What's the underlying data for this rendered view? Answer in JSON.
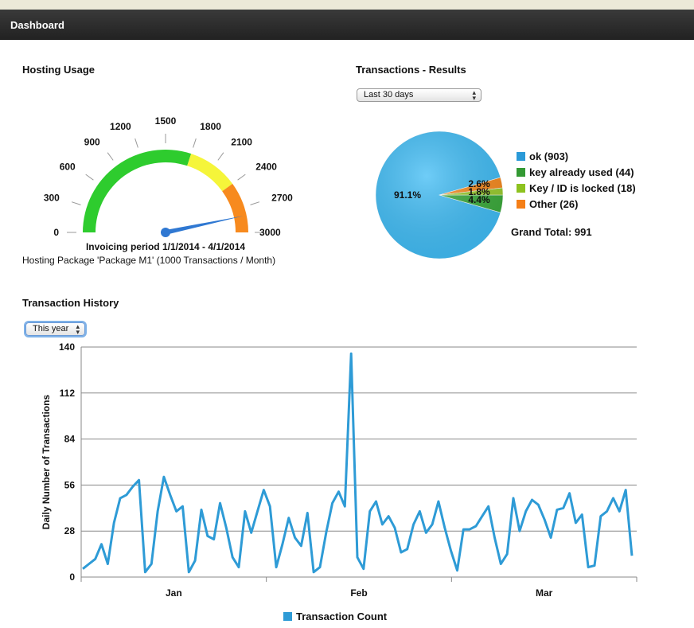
{
  "header": {
    "title": "Dashboard"
  },
  "hosting": {
    "title": "Hosting Usage",
    "gauge": {
      "min": 0,
      "max": 3000,
      "value": 2800,
      "ticks": [
        "0",
        "300",
        "600",
        "900",
        "1200",
        "1500",
        "1800",
        "2100",
        "2400",
        "2700",
        "3000"
      ],
      "bands": [
        {
          "from": 0,
          "to": 1800,
          "color": "#2ecc2e"
        },
        {
          "from": 1800,
          "to": 2400,
          "color": "#f5f53a"
        },
        {
          "from": 2400,
          "to": 3000,
          "color": "#f78a1e"
        }
      ],
      "needle_color": "#2f78d2",
      "caption": "Invoicing period 1/1/2014 - 4/1/2014"
    },
    "package_text": "Hosting Package 'Package M1' (1000 Transactions / Month)"
  },
  "results": {
    "title": "Transactions - Results",
    "period_select": {
      "value": "Last 30 days"
    },
    "grand_total": "Grand Total: 991",
    "chart_data": {
      "type": "pie",
      "slices": [
        {
          "label": "ok (903)",
          "value": 903,
          "pct_label": "91.1%",
          "color": "#3fbcf5",
          "legend_color": "#2a9ad8"
        },
        {
          "label": "key already used (44)",
          "value": 44,
          "pct_label": "4.4%",
          "color": "#3aaa3a",
          "legend_color": "#339933"
        },
        {
          "label": "Key / ID is locked (18)",
          "value": 18,
          "pct_label": "1.8%",
          "color": "#9acc2e",
          "legend_color": "#8dc21f"
        },
        {
          "label": "Other (26)",
          "value": 26,
          "pct_label": "2.6%",
          "color": "#f78a1e",
          "legend_color": "#f57f17"
        }
      ]
    }
  },
  "history": {
    "title": "Transaction History",
    "range_select": {
      "value": "This year"
    },
    "chart_data": {
      "type": "line",
      "ylabel": "Daily Number of Transactions",
      "ylim": [
        0,
        140
      ],
      "yticks": [
        "0",
        "28",
        "56",
        "84",
        "112",
        "140"
      ],
      "xticks": [
        "Jan",
        "Feb",
        "Mar"
      ],
      "series": [
        {
          "name": "Transaction Count",
          "color": "#2e9bd6",
          "values": [
            5,
            8,
            11,
            20,
            8,
            33,
            48,
            50,
            55,
            59,
            3,
            8,
            40,
            61,
            50,
            40,
            43,
            3,
            10,
            41,
            25,
            23,
            45,
            30,
            12,
            6,
            40,
            27,
            40,
            53,
            43,
            6,
            20,
            36,
            24,
            19,
            39,
            3,
            6,
            27,
            45,
            52,
            43,
            136,
            12,
            5,
            40,
            46,
            32,
            37,
            30,
            15,
            17,
            32,
            40,
            27,
            32,
            46,
            30,
            16,
            4,
            29,
            29,
            31,
            37,
            43,
            24,
            8,
            14,
            48,
            28,
            40,
            47,
            44,
            35,
            24,
            41,
            42,
            51,
            33,
            38,
            6,
            7,
            37,
            40,
            48,
            40,
            53,
            13
          ]
        }
      ]
    }
  }
}
